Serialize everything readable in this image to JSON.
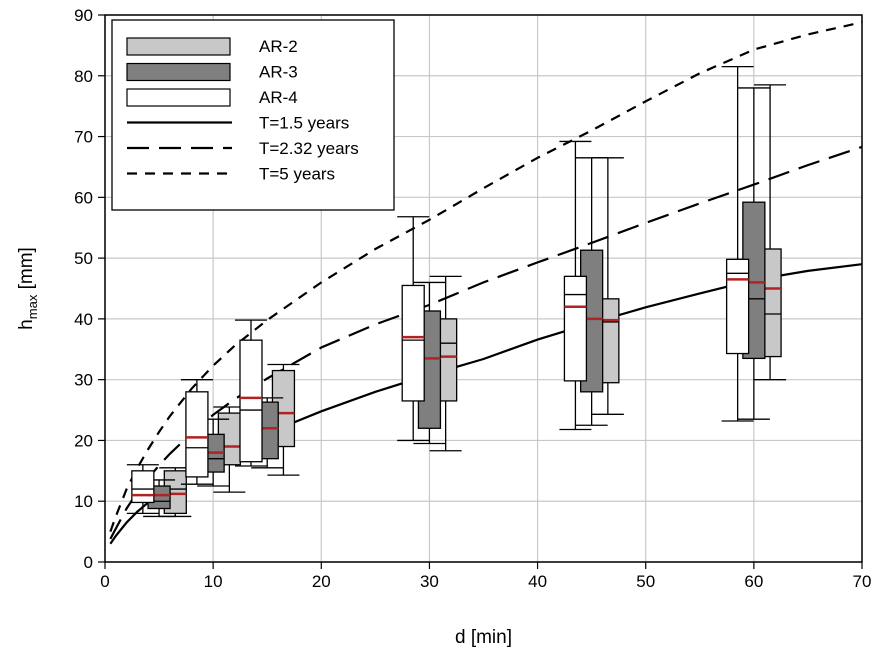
{
  "chart_data": {
    "type": "box",
    "xlabel": "d [min]",
    "ylabel_main": "h",
    "ylabel_sub": "max",
    "ylabel_unit": " [mm]",
    "xlim": [
      0,
      70
    ],
    "ylim": [
      0,
      90
    ],
    "x_ticks": [
      "0",
      "10",
      "20",
      "30",
      "40",
      "50",
      "60",
      "70"
    ],
    "y_ticks": [
      "0",
      "10",
      "20",
      "30",
      "40",
      "50",
      "60",
      "70",
      "80",
      "90"
    ],
    "grid": true,
    "legend_position": "top-left",
    "series": [
      {
        "name": "AR-2",
        "color": "#c8c8c8",
        "boxes": [
          {
            "d": 6.5,
            "min": 7.5,
            "q1": 8.0,
            "median": 12.0,
            "mean": 11.2,
            "q3": 15.0,
            "max": 15.5
          },
          {
            "d": 11.5,
            "min": 11.5,
            "q1": 16.0,
            "median": 19.0,
            "mean": 19.0,
            "q3": 24.5,
            "max": 25.5
          },
          {
            "d": 16.5,
            "min": 14.3,
            "q1": 19.0,
            "median": 24.5,
            "mean": 24.5,
            "q3": 31.5,
            "max": 32.5
          },
          {
            "d": 31.5,
            "min": 18.3,
            "q1": 26.5,
            "median": 36.0,
            "mean": 33.8,
            "q3": 40.0,
            "max": 47.0
          },
          {
            "d": 46.5,
            "min": 24.3,
            "q1": 29.5,
            "median": 39.5,
            "mean": 39.8,
            "q3": 43.3,
            "max": 66.5
          },
          {
            "d": 61.5,
            "min": 30.0,
            "q1": 33.8,
            "median": 40.8,
            "mean": 45.0,
            "q3": 51.5,
            "max": 78.5
          }
        ]
      },
      {
        "name": "AR-3",
        "color": "#7f7f7f",
        "boxes": [
          {
            "d": 5.0,
            "min": 7.5,
            "q1": 8.8,
            "median": 10.0,
            "mean": 11.0,
            "q3": 12.5,
            "max": 13.5
          },
          {
            "d": 10.0,
            "min": 12.5,
            "q1": 14.8,
            "median": 17.0,
            "mean": 18.0,
            "q3": 21.0,
            "max": 23.5
          },
          {
            "d": 15.0,
            "min": 15.5,
            "q1": 17.0,
            "median": 22.0,
            "mean": 22.0,
            "q3": 26.3,
            "max": 27.0
          },
          {
            "d": 30.0,
            "min": 19.5,
            "q1": 22.0,
            "median": 33.5,
            "mean": 33.5,
            "q3": 41.3,
            "max": 46.0
          },
          {
            "d": 45.0,
            "min": 22.5,
            "q1": 28.0,
            "median": 40.0,
            "mean": 40.0,
            "q3": 51.3,
            "max": 66.5
          },
          {
            "d": 60.0,
            "min": 23.5,
            "q1": 33.5,
            "median": 43.3,
            "mean": 46.0,
            "q3": 59.2,
            "max": 78.0
          }
        ]
      },
      {
        "name": "AR-4",
        "color": "#ffffff",
        "boxes": [
          {
            "d": 3.5,
            "min": 8.0,
            "q1": 9.8,
            "median": 12.0,
            "mean": 11.0,
            "q3": 15.0,
            "max": 16.0
          },
          {
            "d": 8.5,
            "min": 12.8,
            "q1": 14.0,
            "median": 18.8,
            "mean": 20.5,
            "q3": 28.0,
            "max": 30.0
          },
          {
            "d": 13.5,
            "min": 15.8,
            "q1": 16.5,
            "median": 25.0,
            "mean": 27.0,
            "q3": 36.5,
            "max": 39.8
          },
          {
            "d": 28.5,
            "min": 20.0,
            "q1": 26.5,
            "median": 36.5,
            "mean": 37.0,
            "q3": 45.5,
            "max": 56.8
          },
          {
            "d": 43.5,
            "min": 21.8,
            "q1": 29.8,
            "median": 44.0,
            "mean": 42.0,
            "q3": 47.0,
            "max": 69.2
          },
          {
            "d": 58.5,
            "min": 23.2,
            "q1": 34.3,
            "median": 47.5,
            "mean": 46.5,
            "q3": 49.8,
            "max": 81.5
          }
        ]
      }
    ],
    "curves": [
      {
        "name": "T=1.5 years",
        "style": "solid",
        "x": [
          0.5,
          1,
          2,
          3,
          4,
          5,
          6,
          8,
          10,
          12,
          15,
          20,
          25,
          30,
          35,
          40,
          45,
          50,
          55,
          60,
          65,
          70
        ],
        "y": [
          3.0,
          4.3,
          6.5,
          8.3,
          9.8,
          11.3,
          12.6,
          14.9,
          17.0,
          18.8,
          21.2,
          24.8,
          28.0,
          30.8,
          33.4,
          36.6,
          39.3,
          41.9,
          44.2,
          46.4,
          47.9,
          49.0
        ]
      },
      {
        "name": "T=2.32 years",
        "style": "longdash",
        "x": [
          0.5,
          1,
          2,
          3,
          4,
          5,
          6,
          8,
          10,
          12,
          15,
          20,
          25,
          30,
          35,
          40,
          45,
          50,
          55,
          60,
          65,
          70
        ],
        "y": [
          3.8,
          5.5,
          8.8,
          11.5,
          13.8,
          15.9,
          17.8,
          21.2,
          24.2,
          26.8,
          30.2,
          35.3,
          39.1,
          42.3,
          46.0,
          49.3,
          52.5,
          55.8,
          59.0,
          62.1,
          65.3,
          68.3
        ]
      },
      {
        "name": "T=5 years",
        "style": "shortdash",
        "x": [
          0.5,
          1,
          2,
          3,
          4,
          5,
          6,
          8,
          10,
          12,
          15,
          20,
          25,
          30,
          35,
          40,
          45,
          50,
          55,
          60,
          65,
          70
        ],
        "y": [
          5.0,
          7.5,
          12.0,
          15.5,
          18.6,
          21.4,
          24.0,
          28.5,
          32.3,
          35.6,
          39.8,
          46.0,
          51.5,
          56.3,
          61.5,
          66.5,
          71.0,
          75.8,
          80.4,
          84.3,
          86.8,
          88.8
        ]
      }
    ],
    "mean_marker_color": "#b22222"
  }
}
